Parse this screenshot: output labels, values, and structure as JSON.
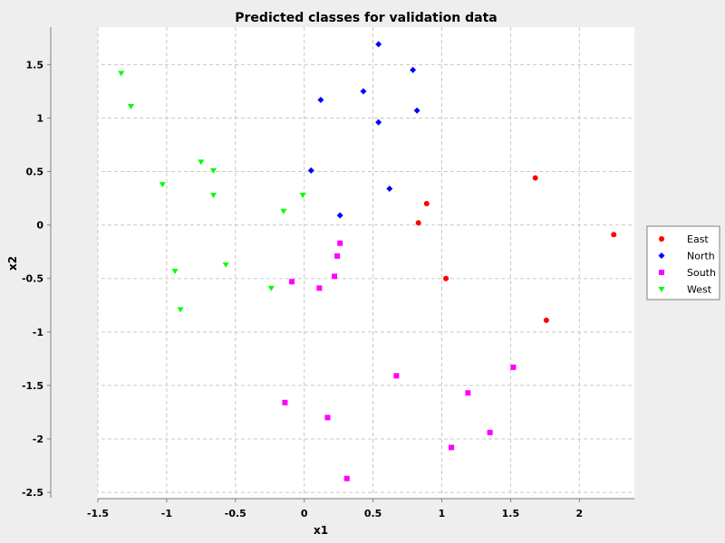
{
  "chart_data": {
    "type": "scatter",
    "title": "Predicted classes for validation data",
    "xlabel": "x1",
    "ylabel": "x2",
    "xlim": [
      -1.5,
      2.4
    ],
    "ylim": [
      -2.55,
      1.85
    ],
    "grid": true,
    "legend_position": "right",
    "x_ticks": [
      -1.5,
      -1,
      -0.5,
      0,
      0.5,
      1,
      1.5,
      2
    ],
    "x_tick_labels": [
      "-1.5",
      "-1",
      "-0.5",
      "0",
      "0.5",
      "1",
      "1.5",
      "2"
    ],
    "y_ticks": [
      1.5,
      1,
      0.5,
      0,
      -0.5,
      -1,
      -1.5,
      -2,
      -2.5
    ],
    "y_tick_labels": [
      "1.5",
      "1",
      "0.5",
      "0",
      "-0.5",
      "-1",
      "-1.5",
      "-2",
      "-2.5"
    ],
    "series": [
      {
        "name": "East",
        "marker": "circle",
        "color": "#ff0000",
        "points": [
          [
            0.89,
            0.2
          ],
          [
            0.83,
            0.02
          ],
          [
            1.03,
            -0.5
          ],
          [
            1.68,
            0.44
          ],
          [
            1.76,
            -0.89
          ],
          [
            2.25,
            -0.09
          ]
        ]
      },
      {
        "name": "North",
        "marker": "diamond",
        "color": "#0000ff",
        "points": [
          [
            0.54,
            1.69
          ],
          [
            0.79,
            1.45
          ],
          [
            0.43,
            1.25
          ],
          [
            0.12,
            1.17
          ],
          [
            0.82,
            1.07
          ],
          [
            0.54,
            0.96
          ],
          [
            0.05,
            0.51
          ],
          [
            0.62,
            0.34
          ],
          [
            0.26,
            0.09
          ]
        ]
      },
      {
        "name": "South",
        "marker": "square",
        "color": "#ff00ff",
        "points": [
          [
            0.26,
            -0.17
          ],
          [
            0.24,
            -0.29
          ],
          [
            0.22,
            -0.48
          ],
          [
            -0.09,
            -0.53
          ],
          [
            0.11,
            -0.59
          ],
          [
            0.67,
            -1.41
          ],
          [
            1.52,
            -1.33
          ],
          [
            1.19,
            -1.57
          ],
          [
            -0.14,
            -1.66
          ],
          [
            0.17,
            -1.8
          ],
          [
            1.35,
            -1.94
          ],
          [
            1.07,
            -2.08
          ],
          [
            0.31,
            -2.37
          ]
        ]
      },
      {
        "name": "West",
        "marker": "triangle-down",
        "color": "#00ff00",
        "points": [
          [
            -1.33,
            1.42
          ],
          [
            -1.26,
            1.11
          ],
          [
            -0.75,
            0.59
          ],
          [
            -0.66,
            0.51
          ],
          [
            -1.03,
            0.38
          ],
          [
            -0.66,
            0.28
          ],
          [
            -0.01,
            0.28
          ],
          [
            -0.15,
            0.13
          ],
          [
            -0.57,
            -0.37
          ],
          [
            -0.94,
            -0.43
          ],
          [
            -0.24,
            -0.59
          ],
          [
            -0.9,
            -0.79
          ]
        ]
      }
    ]
  },
  "colors": {
    "page_background": "#eeeeee",
    "plot_background": "#ffffff",
    "gridline": "#c8c8c8",
    "axis": "#808080",
    "text": "#000000"
  }
}
